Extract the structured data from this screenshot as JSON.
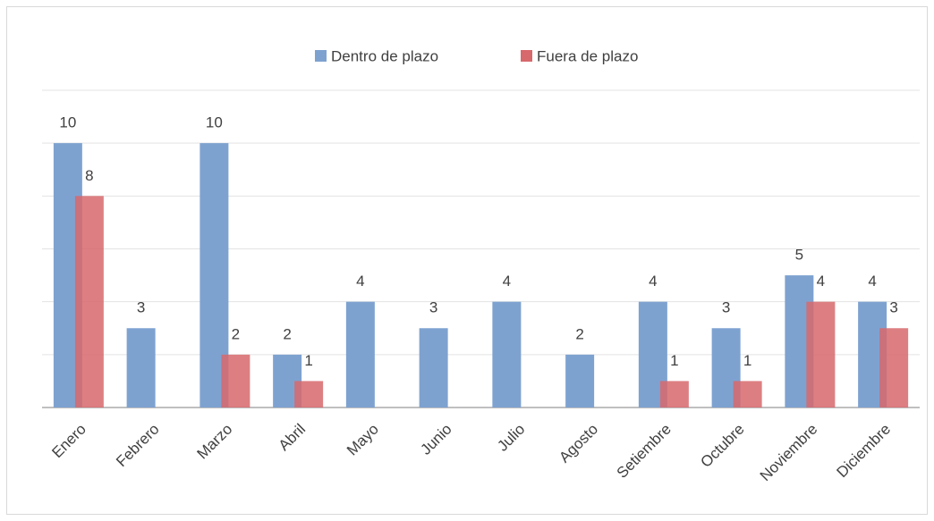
{
  "chart_data": {
    "type": "bar",
    "categories": [
      "Enero",
      "Febrero",
      "Marzo",
      "Abril",
      "Mayo",
      "Junio",
      "Julio",
      "Agosto",
      "Setiembre",
      "Octubre",
      "Noviembre",
      "Diciembre"
    ],
    "series": [
      {
        "name": "Dentro de plazo",
        "color": "#7ea2d0",
        "values": [
          10,
          3,
          10,
          2,
          4,
          3,
          4,
          2,
          4,
          3,
          5,
          4
        ]
      },
      {
        "name": "Fuera de plazo",
        "color": "#d7686c",
        "values": [
          8,
          null,
          2,
          1,
          null,
          null,
          null,
          null,
          1,
          1,
          4,
          3
        ]
      }
    ],
    "ylim": [
      0,
      12
    ],
    "yticks": [
      0,
      2,
      4,
      6,
      8,
      10,
      12
    ],
    "grid": true,
    "legend": "top"
  }
}
